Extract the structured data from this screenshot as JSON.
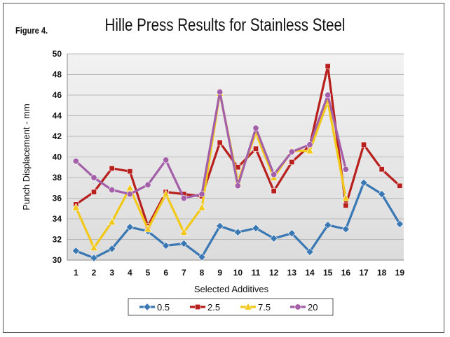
{
  "figure_label": "Figure 4.",
  "chart_data": {
    "type": "line",
    "title": "Hille Press Results for Stainless Steel",
    "xlabel": "Selected Additives",
    "ylabel": "Punch Displacement - mm",
    "categories": [
      "1",
      "2",
      "3",
      "4",
      "5",
      "6",
      "7",
      "8",
      "9",
      "10",
      "11",
      "12",
      "13",
      "14",
      "15",
      "16",
      "17",
      "18",
      "19"
    ],
    "ylim": [
      30,
      50
    ],
    "yticks": [
      30,
      32,
      34,
      36,
      38,
      40,
      42,
      44,
      46,
      48,
      50
    ],
    "grid": true,
    "legend_position": "bottom",
    "series": [
      {
        "name": "0.5",
        "color": "#3a78b4",
        "marker": "diamond",
        "values": [
          30.9,
          30.2,
          31.1,
          33.2,
          32.8,
          31.4,
          31.6,
          30.3,
          33.3,
          32.7,
          33.1,
          32.1,
          32.6,
          30.8,
          33.4,
          33.0,
          37.5,
          36.4,
          33.5
        ]
      },
      {
        "name": "2.5",
        "color": "#b8201e",
        "marker": "square",
        "values": [
          35.4,
          36.6,
          38.9,
          38.6,
          33.3,
          36.6,
          36.4,
          36.2,
          41.4,
          39.0,
          40.8,
          36.7,
          39.5,
          41.1,
          48.8,
          35.3,
          41.2,
          38.8,
          37.2
        ]
      },
      {
        "name": "7.5",
        "color": "#f2c81a",
        "marker": "triangle",
        "values": [
          35.1,
          31.2,
          33.7,
          37.0,
          33.0,
          36.4,
          32.7,
          35.1,
          46.2,
          37.6,
          42.3,
          38.0,
          40.6,
          40.6,
          45.4,
          36.0,
          null,
          null,
          null
        ]
      },
      {
        "name": "20",
        "color": "#a35fa8",
        "marker": "circle",
        "values": [
          39.6,
          38.0,
          36.8,
          36.4,
          37.3,
          39.7,
          36.0,
          36.4,
          46.3,
          37.2,
          42.8,
          38.3,
          40.5,
          41.2,
          46.0,
          38.8,
          null,
          null,
          null
        ]
      }
    ]
  }
}
